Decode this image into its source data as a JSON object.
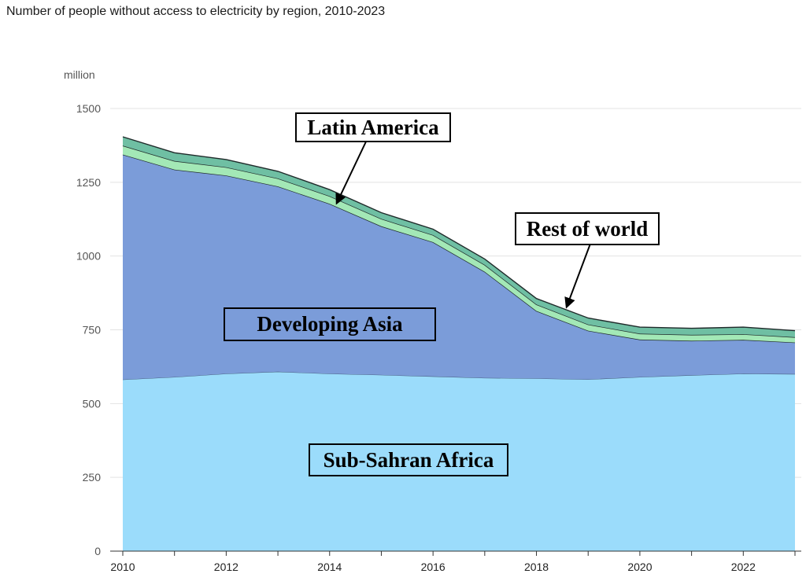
{
  "chart_data": {
    "type": "area",
    "stacked": true,
    "title": "Number of people without access to electricity by region, 2010-2023",
    "ylabel": "million",
    "xlabel": "",
    "ylim": [
      0,
      1500
    ],
    "yticks": [
      0,
      250,
      500,
      750,
      1000,
      1250,
      1500
    ],
    "xticks": [
      2010,
      2012,
      2014,
      2016,
      2018,
      2020,
      2022
    ],
    "grid": true,
    "x": [
      2010,
      2011,
      2012,
      2013,
      2014,
      2015,
      2016,
      2017,
      2018,
      2019,
      2020,
      2021,
      2022,
      2023
    ],
    "series": [
      {
        "name": "Sub-Saharan Africa",
        "color": "#9bdcfb",
        "values": [
          581,
          590,
          601,
          608,
          601,
          597,
          592,
          587,
          585,
          582,
          590,
          596,
          601,
          600
        ]
      },
      {
        "name": "Developing Asia",
        "color": "#7b9cd9",
        "values": [
          763,
          703,
          672,
          628,
          576,
          504,
          455,
          360,
          229,
          165,
          127,
          117,
          115,
          107
        ]
      },
      {
        "name": "Latin America",
        "color": "#a3e8b6",
        "values": [
          30,
          29,
          28,
          27,
          26,
          25,
          24,
          23,
          22,
          21,
          20,
          20,
          19,
          18
        ]
      },
      {
        "name": "Rest of world",
        "color": "#6fbfa3",
        "values": [
          30,
          28,
          26,
          24,
          22,
          21,
          20,
          20,
          20,
          22,
          22,
          22,
          24,
          22
        ]
      }
    ],
    "annotations": {
      "latin_america": "Latin America",
      "rest_of_world": "Rest of world",
      "developing_asia": "Developing Asia",
      "sub_saharan": "Sub-Sahran Africa"
    }
  }
}
